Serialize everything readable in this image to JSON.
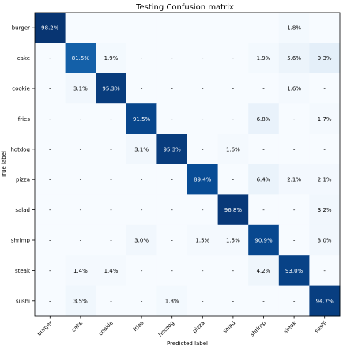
{
  "chart_data": {
    "type": "heatmap",
    "title": "Testing Confusion matrix",
    "xlabel": "Predicted label",
    "ylabel": "True label",
    "x_categories": [
      "burger",
      "cake",
      "cookie",
      "fries",
      "hotdog",
      "pizza",
      "salad",
      "shrimp",
      "steak",
      "sushi"
    ],
    "y_categories": [
      "burger",
      "cake",
      "cookie",
      "fries",
      "hotdog",
      "pizza",
      "salad",
      "shrimp",
      "steak",
      "sushi"
    ],
    "values": [
      [
        98.2,
        0,
        0,
        0,
        0,
        0,
        0,
        0,
        1.8,
        0
      ],
      [
        0,
        81.5,
        1.9,
        0,
        0,
        0,
        0,
        1.9,
        5.6,
        9.3
      ],
      [
        0,
        3.1,
        95.3,
        0,
        0,
        0,
        0,
        0,
        1.6,
        0
      ],
      [
        0,
        0,
        0,
        91.5,
        0,
        0,
        0,
        6.8,
        0,
        1.7
      ],
      [
        0,
        0,
        0,
        3.1,
        95.3,
        0,
        1.6,
        0,
        0,
        0
      ],
      [
        0,
        0,
        0,
        0,
        0,
        89.4,
        0,
        6.4,
        2.1,
        2.1
      ],
      [
        0,
        0,
        0,
        0,
        0,
        0,
        96.8,
        0,
        0,
        3.2
      ],
      [
        0,
        0,
        0,
        3.0,
        0,
        1.5,
        1.5,
        90.9,
        0,
        3.0
      ],
      [
        0,
        1.4,
        1.4,
        0,
        0,
        0,
        0,
        4.2,
        93.0,
        0
      ],
      [
        0,
        3.5,
        0,
        0,
        1.8,
        0,
        0,
        0,
        0,
        94.7
      ]
    ],
    "labels": [
      [
        "98.2%",
        "-",
        "-",
        "-",
        "-",
        "-",
        "-",
        "-",
        "1.8%",
        "-"
      ],
      [
        "-",
        "81.5%",
        "1.9%",
        "-",
        "-",
        "-",
        "-",
        "1.9%",
        "5.6%",
        "9.3%"
      ],
      [
        "-",
        "3.1%",
        "95.3%",
        "-",
        "-",
        "-",
        "-",
        "-",
        "1.6%",
        "-"
      ],
      [
        "-",
        "-",
        "-",
        "91.5%",
        "-",
        "-",
        "-",
        "6.8%",
        "-",
        "1.7%"
      ],
      [
        "-",
        "-",
        "-",
        "3.1%",
        "95.3%",
        "-",
        "1.6%",
        "-",
        "-",
        "-"
      ],
      [
        "-",
        "-",
        "-",
        "-",
        "-",
        "89.4%",
        "-",
        "6.4%",
        "2.1%",
        "2.1%"
      ],
      [
        "-",
        "-",
        "-",
        "-",
        "-",
        "-",
        "96.8%",
        "-",
        "-",
        "3.2%"
      ],
      [
        "-",
        "-",
        "-",
        "3.0%",
        "-",
        "1.5%",
        "1.5%",
        "90.9%",
        "-",
        "3.0%"
      ],
      [
        "-",
        "1.4%",
        "1.4%",
        "-",
        "-",
        "-",
        "-",
        "4.2%",
        "93.0%",
        "-"
      ],
      [
        "-",
        "3.5%",
        "-",
        "-",
        "1.8%",
        "-",
        "-",
        "-",
        "-",
        "94.7%"
      ]
    ],
    "value_range": [
      0,
      100
    ],
    "colormap": "Blues",
    "grid": false
  }
}
